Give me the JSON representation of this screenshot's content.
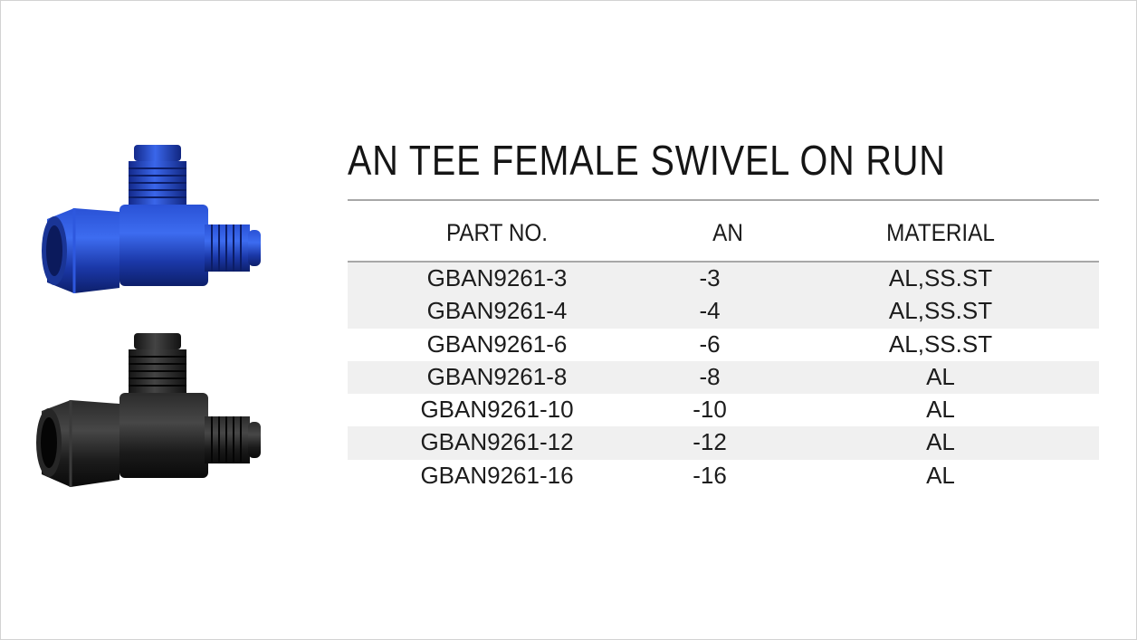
{
  "title": "AN TEE FEMALE SWIVEL ON RUN",
  "headers": {
    "part_no": "PART NO.",
    "an": "AN",
    "material": "MATERIAL"
  },
  "rows": [
    {
      "part_no": "GBAN9261-3",
      "an": "-3",
      "material": "AL,SS.ST"
    },
    {
      "part_no": "GBAN9261-4",
      "an": "-4",
      "material": "AL,SS.ST"
    },
    {
      "part_no": "GBAN9261-6",
      "an": "-6",
      "material": "AL,SS.ST"
    },
    {
      "part_no": "GBAN9261-8",
      "an": "-8",
      "material": "AL"
    },
    {
      "part_no": "GBAN9261-10",
      "an": "-10",
      "material": "AL"
    },
    {
      "part_no": "GBAN9261-12",
      "an": "-12",
      "material": "AL"
    },
    {
      "part_no": "GBAN9261-16",
      "an": "-16",
      "material": "AL"
    }
  ],
  "colors": {
    "blue_fitting": "#1f3fb0",
    "black_fitting": "#161616",
    "row_stripe": "#f0f0f0",
    "rule": "#a8a8a8"
  },
  "images": [
    "blue-tee-fitting",
    "black-tee-fitting"
  ]
}
